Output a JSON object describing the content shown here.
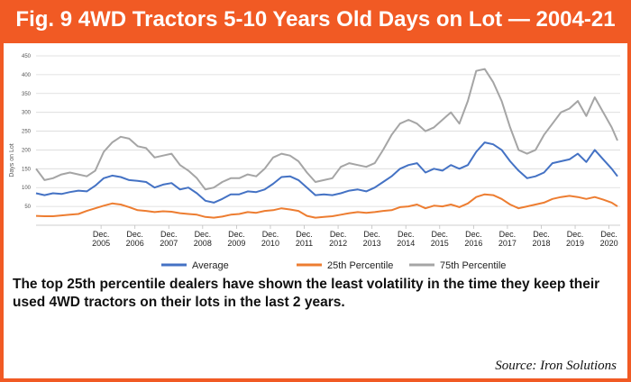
{
  "header": {
    "title": "Fig. 9 4WD Tractors 5-10 Years Old Days on Lot — 2004-21"
  },
  "caption": "The top 25th percentile dealers have shown the least volatility in the time they keep their used 4WD tractors on their lots in the last 2 years.",
  "source": "Source: Iron Solutions",
  "colors": {
    "background": "#f15a24",
    "average": "#4472c4",
    "p25": "#ed7d31",
    "p75": "#a5a5a5",
    "grid": "#d9d9d9"
  },
  "chart_data": {
    "type": "line",
    "title": "",
    "ylabel": "Days on Lot",
    "xlabel": "",
    "ylim": [
      0,
      450
    ],
    "yticks": [
      0,
      50,
      100,
      150,
      200,
      250,
      300,
      350,
      400,
      450
    ],
    "ytick_labels": [
      "",
      "50",
      "100",
      "150",
      "200",
      "250",
      "300",
      "350",
      "400",
      "450"
    ],
    "grid": true,
    "legend_position": "bottom",
    "xlim": [
      2004.0,
      2021.25
    ],
    "x_ticks": [
      {
        "x": 2005.92,
        "line1": "Dec.",
        "line2": "2005"
      },
      {
        "x": 2006.92,
        "line1": "Dec.",
        "line2": "2006"
      },
      {
        "x": 2007.92,
        "line1": "Dec.",
        "line2": "2007"
      },
      {
        "x": 2008.92,
        "line1": "Dec.",
        "line2": "2008"
      },
      {
        "x": 2009.92,
        "line1": "Dec.",
        "line2": "2009"
      },
      {
        "x": 2010.92,
        "line1": "Dec.",
        "line2": "2010"
      },
      {
        "x": 2011.92,
        "line1": "Dec.",
        "line2": "2011"
      },
      {
        "x": 2012.92,
        "line1": "Dec.",
        "line2": "2012"
      },
      {
        "x": 2013.92,
        "line1": "Dec.",
        "line2": "2013"
      },
      {
        "x": 2014.92,
        "line1": "Dec.",
        "line2": "2014"
      },
      {
        "x": 2015.92,
        "line1": "Dec.",
        "line2": "2015"
      },
      {
        "x": 2016.92,
        "line1": "Dec.",
        "line2": "2016"
      },
      {
        "x": 2017.92,
        "line1": "Dec.",
        "line2": "2017"
      },
      {
        "x": 2018.92,
        "line1": "Dec.",
        "line2": "2018"
      },
      {
        "x": 2019.92,
        "line1": "Dec.",
        "line2": "2019"
      },
      {
        "x": 2020.92,
        "line1": "Dec.",
        "line2": "2020"
      }
    ],
    "series": [
      {
        "name": "Average",
        "color": "#4472c4",
        "x": [
          2004.0,
          2004.25,
          2004.5,
          2004.75,
          2005.0,
          2005.25,
          2005.5,
          2005.75,
          2006.0,
          2006.25,
          2006.5,
          2006.75,
          2007.0,
          2007.25,
          2007.5,
          2007.75,
          2008.0,
          2008.25,
          2008.5,
          2008.75,
          2009.0,
          2009.25,
          2009.5,
          2009.75,
          2010.0,
          2010.25,
          2010.5,
          2010.75,
          2011.0,
          2011.25,
          2011.5,
          2011.75,
          2012.0,
          2012.25,
          2012.5,
          2012.75,
          2013.0,
          2013.25,
          2013.5,
          2013.75,
          2014.0,
          2014.25,
          2014.5,
          2014.75,
          2015.0,
          2015.25,
          2015.5,
          2015.75,
          2016.0,
          2016.25,
          2016.5,
          2016.75,
          2017.0,
          2017.25,
          2017.5,
          2017.75,
          2018.0,
          2018.25,
          2018.5,
          2018.75,
          2019.0,
          2019.25,
          2019.5,
          2019.75,
          2020.0,
          2020.25,
          2020.5,
          2020.75,
          2021.0,
          2021.17
        ],
        "values": [
          85,
          80,
          85,
          83,
          88,
          92,
          90,
          105,
          125,
          132,
          128,
          120,
          118,
          115,
          100,
          108,
          112,
          95,
          100,
          85,
          65,
          60,
          70,
          82,
          82,
          90,
          88,
          95,
          110,
          128,
          130,
          120,
          100,
          80,
          82,
          80,
          85,
          92,
          95,
          90,
          100,
          115,
          130,
          150,
          160,
          165,
          140,
          150,
          145,
          160,
          150,
          160,
          195,
          220,
          215,
          200,
          170,
          145,
          125,
          130,
          140,
          165,
          170,
          175,
          190,
          168,
          200,
          175,
          150,
          130
        ]
      },
      {
        "name": "25th Percentile",
        "color": "#ed7d31",
        "x": [
          2004.0,
          2004.25,
          2004.5,
          2004.75,
          2005.0,
          2005.25,
          2005.5,
          2005.75,
          2006.0,
          2006.25,
          2006.5,
          2006.75,
          2007.0,
          2007.25,
          2007.5,
          2007.75,
          2008.0,
          2008.25,
          2008.5,
          2008.75,
          2009.0,
          2009.25,
          2009.5,
          2009.75,
          2010.0,
          2010.25,
          2010.5,
          2010.75,
          2011.0,
          2011.25,
          2011.5,
          2011.75,
          2012.0,
          2012.25,
          2012.5,
          2012.75,
          2013.0,
          2013.25,
          2013.5,
          2013.75,
          2014.0,
          2014.25,
          2014.5,
          2014.75,
          2015.0,
          2015.25,
          2015.5,
          2015.75,
          2016.0,
          2016.25,
          2016.5,
          2016.75,
          2017.0,
          2017.25,
          2017.5,
          2017.75,
          2018.0,
          2018.25,
          2018.5,
          2018.75,
          2019.0,
          2019.25,
          2019.5,
          2019.75,
          2020.0,
          2020.25,
          2020.5,
          2020.75,
          2021.0,
          2021.17
        ],
        "values": [
          25,
          24,
          24,
          26,
          28,
          30,
          38,
          45,
          52,
          58,
          55,
          48,
          40,
          38,
          35,
          37,
          36,
          32,
          30,
          28,
          22,
          20,
          23,
          28,
          30,
          35,
          33,
          38,
          40,
          45,
          42,
          38,
          25,
          20,
          22,
          24,
          28,
          32,
          35,
          33,
          35,
          38,
          40,
          48,
          50,
          55,
          45,
          52,
          50,
          55,
          48,
          58,
          75,
          82,
          80,
          70,
          55,
          45,
          50,
          55,
          60,
          70,
          75,
          78,
          75,
          70,
          75,
          68,
          60,
          50
        ]
      },
      {
        "name": "75th Percentile",
        "color": "#a5a5a5",
        "x": [
          2004.0,
          2004.25,
          2004.5,
          2004.75,
          2005.0,
          2005.25,
          2005.5,
          2005.75,
          2006.0,
          2006.25,
          2006.5,
          2006.75,
          2007.0,
          2007.25,
          2007.5,
          2007.75,
          2008.0,
          2008.25,
          2008.5,
          2008.75,
          2009.0,
          2009.25,
          2009.5,
          2009.75,
          2010.0,
          2010.25,
          2010.5,
          2010.75,
          2011.0,
          2011.25,
          2011.5,
          2011.75,
          2012.0,
          2012.25,
          2012.5,
          2012.75,
          2013.0,
          2013.25,
          2013.5,
          2013.75,
          2014.0,
          2014.25,
          2014.5,
          2014.75,
          2015.0,
          2015.25,
          2015.5,
          2015.75,
          2016.0,
          2016.25,
          2016.5,
          2016.75,
          2017.0,
          2017.25,
          2017.5,
          2017.75,
          2018.0,
          2018.25,
          2018.5,
          2018.75,
          2019.0,
          2019.25,
          2019.5,
          2019.75,
          2020.0,
          2020.25,
          2020.5,
          2020.75,
          2021.0,
          2021.17
        ],
        "values": [
          150,
          120,
          125,
          135,
          140,
          135,
          130,
          145,
          195,
          220,
          235,
          230,
          210,
          205,
          180,
          185,
          190,
          160,
          145,
          125,
          95,
          100,
          115,
          125,
          125,
          135,
          130,
          150,
          180,
          190,
          185,
          170,
          140,
          115,
          120,
          125,
          155,
          165,
          160,
          155,
          165,
          200,
          240,
          270,
          280,
          270,
          250,
          260,
          280,
          300,
          270,
          330,
          410,
          415,
          380,
          330,
          260,
          200,
          190,
          200,
          240,
          270,
          300,
          310,
          330,
          290,
          340,
          300,
          260,
          225
        ]
      }
    ]
  }
}
